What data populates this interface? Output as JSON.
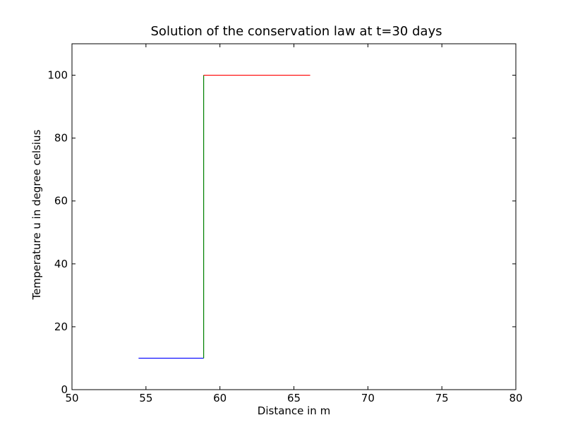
{
  "chart_data": {
    "type": "line",
    "title": "Solution of the conservation law at t=30 days",
    "xlabel": "Distance in m",
    "ylabel": "Temperature u in degree celsius",
    "xlim": [
      50,
      80
    ],
    "ylim": [
      0,
      110
    ],
    "xticks": [
      50,
      55,
      60,
      65,
      70,
      75,
      80
    ],
    "yticks": [
      0,
      20,
      40,
      60,
      80,
      100
    ],
    "grid": false,
    "legend": "none",
    "series": [
      {
        "name": "blue segment",
        "color": "#0000ff",
        "x": [
          54.5,
          58.9
        ],
        "y": [
          10,
          10
        ]
      },
      {
        "name": "green segment",
        "color": "#008000",
        "x": [
          58.9,
          58.9
        ],
        "y": [
          10,
          100
        ]
      },
      {
        "name": "red segment",
        "color": "#ff0000",
        "x": [
          58.9,
          66.1
        ],
        "y": [
          100,
          100
        ]
      }
    ]
  }
}
